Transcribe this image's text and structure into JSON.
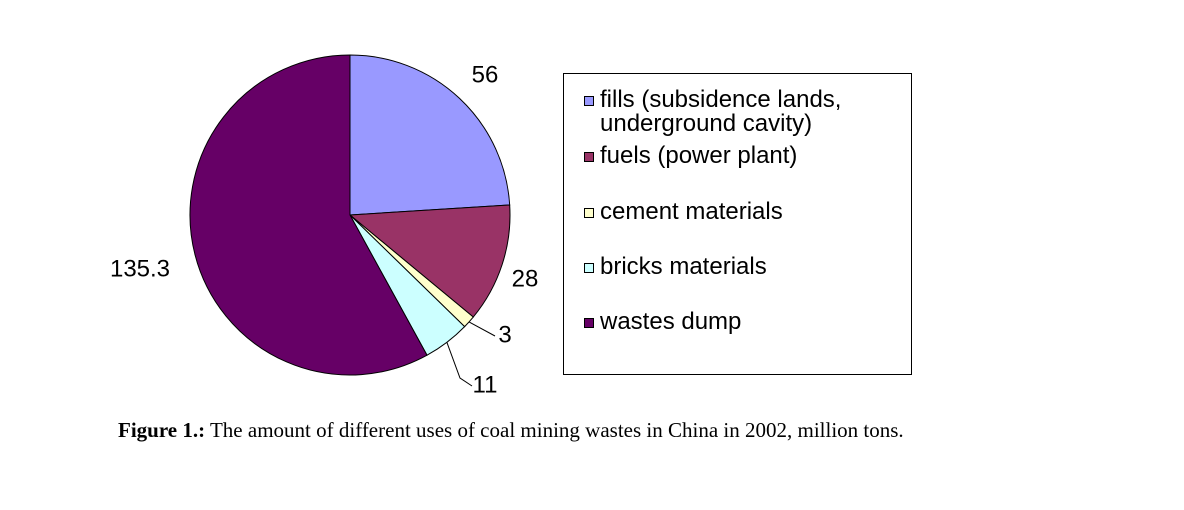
{
  "chart_data": {
    "type": "pie",
    "categories": [
      "fills (subsidence lands, underground cavity)",
      "fuels (power plant)",
      "cement materials",
      "bricks materials",
      "wastes dump"
    ],
    "values": [
      56,
      28,
      3,
      11,
      135.3
    ],
    "colors": [
      "#9999ff",
      "#993366",
      "#ffffcc",
      "#ccffff",
      "#660066"
    ],
    "legend": "right",
    "caption_label": "Figure 1.:",
    "caption": "The amount of different uses of coal mining wastes in China in 2002, million tons."
  }
}
